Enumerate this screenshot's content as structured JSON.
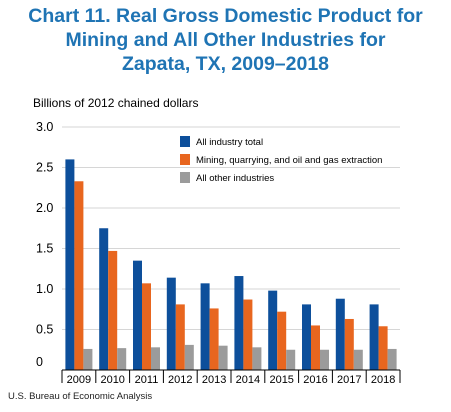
{
  "chart_data": {
    "type": "bar",
    "title_lines": [
      "Chart 11. Real Gross Domestic Product for",
      "Mining and All Other Industries for",
      "Zapata, TX, 2009–2018"
    ],
    "ylabel": "Billions of 2012 chained dollars",
    "ylim": [
      0,
      3.0
    ],
    "yticks": [
      "0",
      "0.5",
      "1.0",
      "1.5",
      "2.0",
      "2.5",
      "3.0"
    ],
    "categories": [
      "2009",
      "2010",
      "2011",
      "2012",
      "2013",
      "2014",
      "2015",
      "2016",
      "2017",
      "2018"
    ],
    "series": [
      {
        "name": "All industry total",
        "color": "#0d4f9b",
        "values": [
          2.6,
          1.75,
          1.35,
          1.14,
          1.07,
          1.16,
          0.98,
          0.81,
          0.88,
          0.81
        ]
      },
      {
        "name": "Mining, quarrying, and oil and gas extraction",
        "color": "#e8661f",
        "values": [
          2.33,
          1.47,
          1.07,
          0.81,
          0.76,
          0.87,
          0.72,
          0.55,
          0.63,
          0.54
        ]
      },
      {
        "name": "All other industries",
        "color": "#9b9b9b",
        "values": [
          0.26,
          0.27,
          0.28,
          0.31,
          0.3,
          0.28,
          0.25,
          0.25,
          0.25,
          0.26
        ]
      }
    ],
    "grid": true,
    "legend_position": "top-right"
  },
  "source": "U.S. Bureau of Economic Analysis"
}
